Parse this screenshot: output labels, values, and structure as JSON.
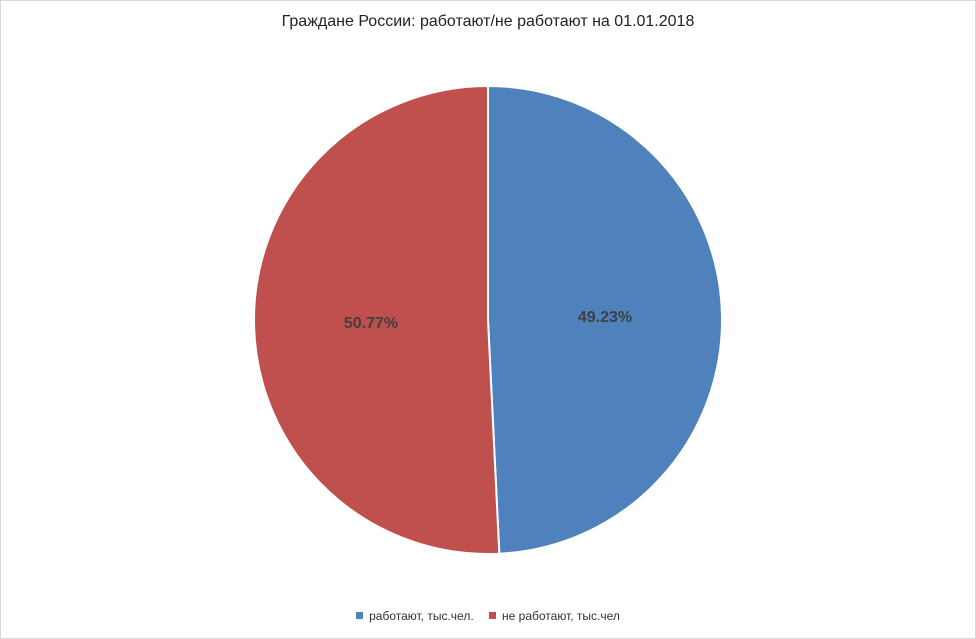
{
  "chart_data": {
    "type": "pie",
    "title": "Граждане России: работают/не работают на 01.01.2018",
    "slices": [
      {
        "name": "работают, тыс.чел.",
        "value": 49.23,
        "label": "49.23%",
        "color": "#4f81bd"
      },
      {
        "name": "не работают, тыс.чел",
        "value": 50.77,
        "label": "50.77%",
        "color": "#c0504d"
      }
    ],
    "legend_position": "bottom"
  }
}
